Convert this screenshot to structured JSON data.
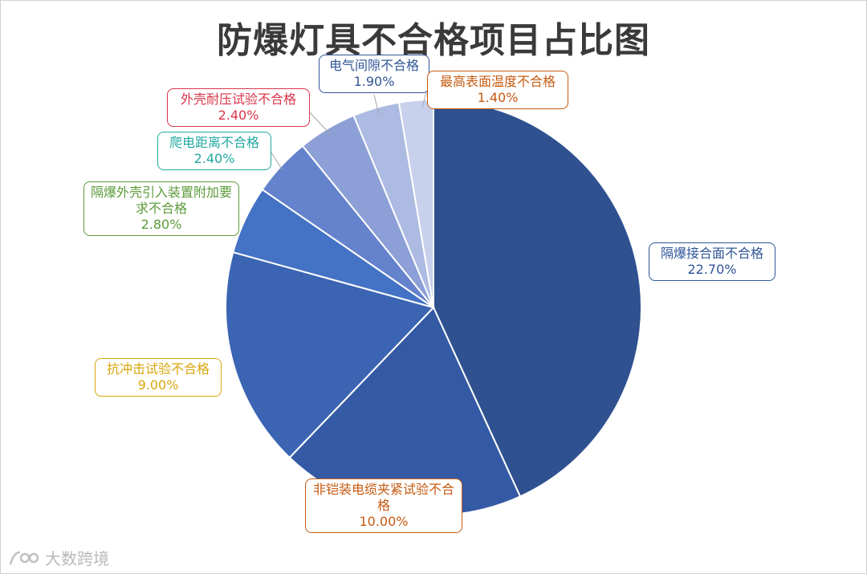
{
  "chart_data": {
    "type": "pie",
    "title": "防爆灯具不合格项目占比图",
    "start_angle_deg": 0,
    "direction": "clockwise",
    "slices": [
      {
        "label": "隔爆接合面不合格",
        "value": 22.7,
        "value_text": "22.70%",
        "color": "#2f5190",
        "label_color": "#2f5597"
      },
      {
        "label": "非铠装电缆夹紧试验不合格",
        "value": 10.0,
        "value_text": "10.00%",
        "color": "#345aa5",
        "label_color": "#c55a11"
      },
      {
        "label": "抗冲击试验不合格",
        "value": 9.0,
        "value_text": "9.00%",
        "color": "#3b64b3",
        "label_color": "#d9a60b"
      },
      {
        "label": "隔爆外壳引入装置附加要求不合格",
        "value": 2.8,
        "value_text": "2.80%",
        "color": "#4472c4",
        "label_color": "#5c9b3a"
      },
      {
        "label": "爬电距离不合格",
        "value": 2.4,
        "value_text": "2.40%",
        "color": "#6582cc",
        "label_color": "#22a8a0"
      },
      {
        "label": "外壳耐压试验不合格",
        "value": 2.4,
        "value_text": "2.40%",
        "color": "#8c9fd6",
        "label_color": "#d9364a"
      },
      {
        "label": "电气间隙不合格",
        "value": 1.9,
        "value_text": "1.90%",
        "color": "#adbbe2",
        "label_color": "#2f5597"
      },
      {
        "label": "最高表面温度不合格",
        "value": 1.4,
        "value_text": "1.40%",
        "color": "#c8d1ec",
        "label_color": "#c55a11"
      }
    ]
  },
  "watermark": {
    "text": "大数跨境"
  }
}
